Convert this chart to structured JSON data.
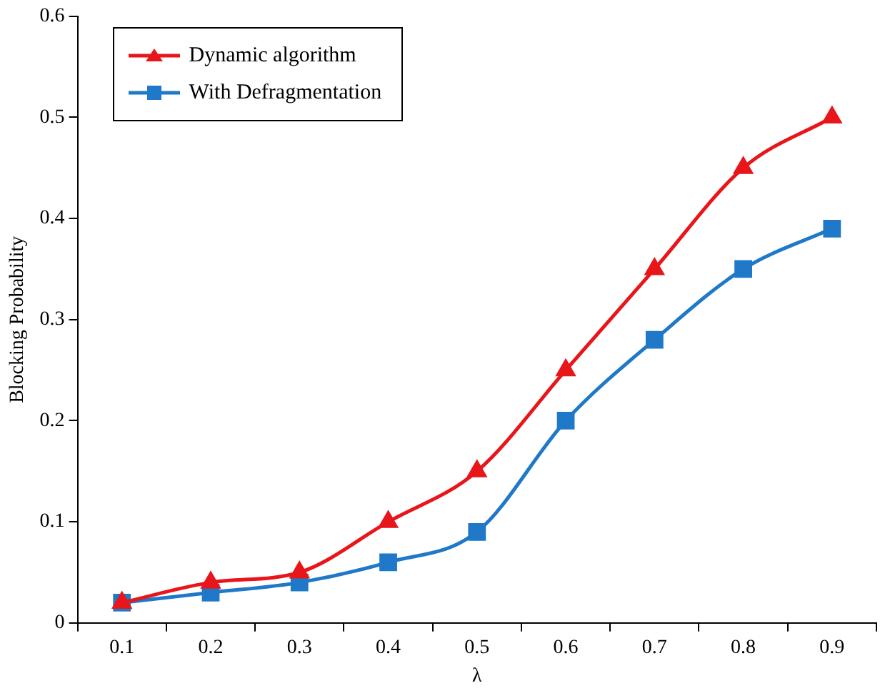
{
  "chart_data": {
    "type": "line",
    "xlabel": "λ",
    "ylabel": "Blocking Probability",
    "categories": [
      "0.1",
      "0.2",
      "0.3",
      "0.4",
      "0.5",
      "0.6",
      "0.7",
      "0.8",
      "0.9"
    ],
    "series": [
      {
        "name": "Dynamic algorithm",
        "color": "#e8161b",
        "marker": "triangle",
        "values": [
          0.02,
          0.04,
          0.05,
          0.1,
          0.15,
          0.25,
          0.35,
          0.45,
          0.5
        ]
      },
      {
        "name": "With Defragmentation",
        "color": "#1f78c8",
        "marker": "square",
        "values": [
          0.02,
          0.03,
          0.04,
          0.06,
          0.09,
          0.2,
          0.28,
          0.35,
          0.39
        ]
      }
    ],
    "ylim": [
      0,
      0.6
    ],
    "yticks": [
      0,
      0.1,
      0.2,
      0.3,
      0.4,
      0.5,
      0.6
    ],
    "grid": false,
    "legend": "top left"
  }
}
